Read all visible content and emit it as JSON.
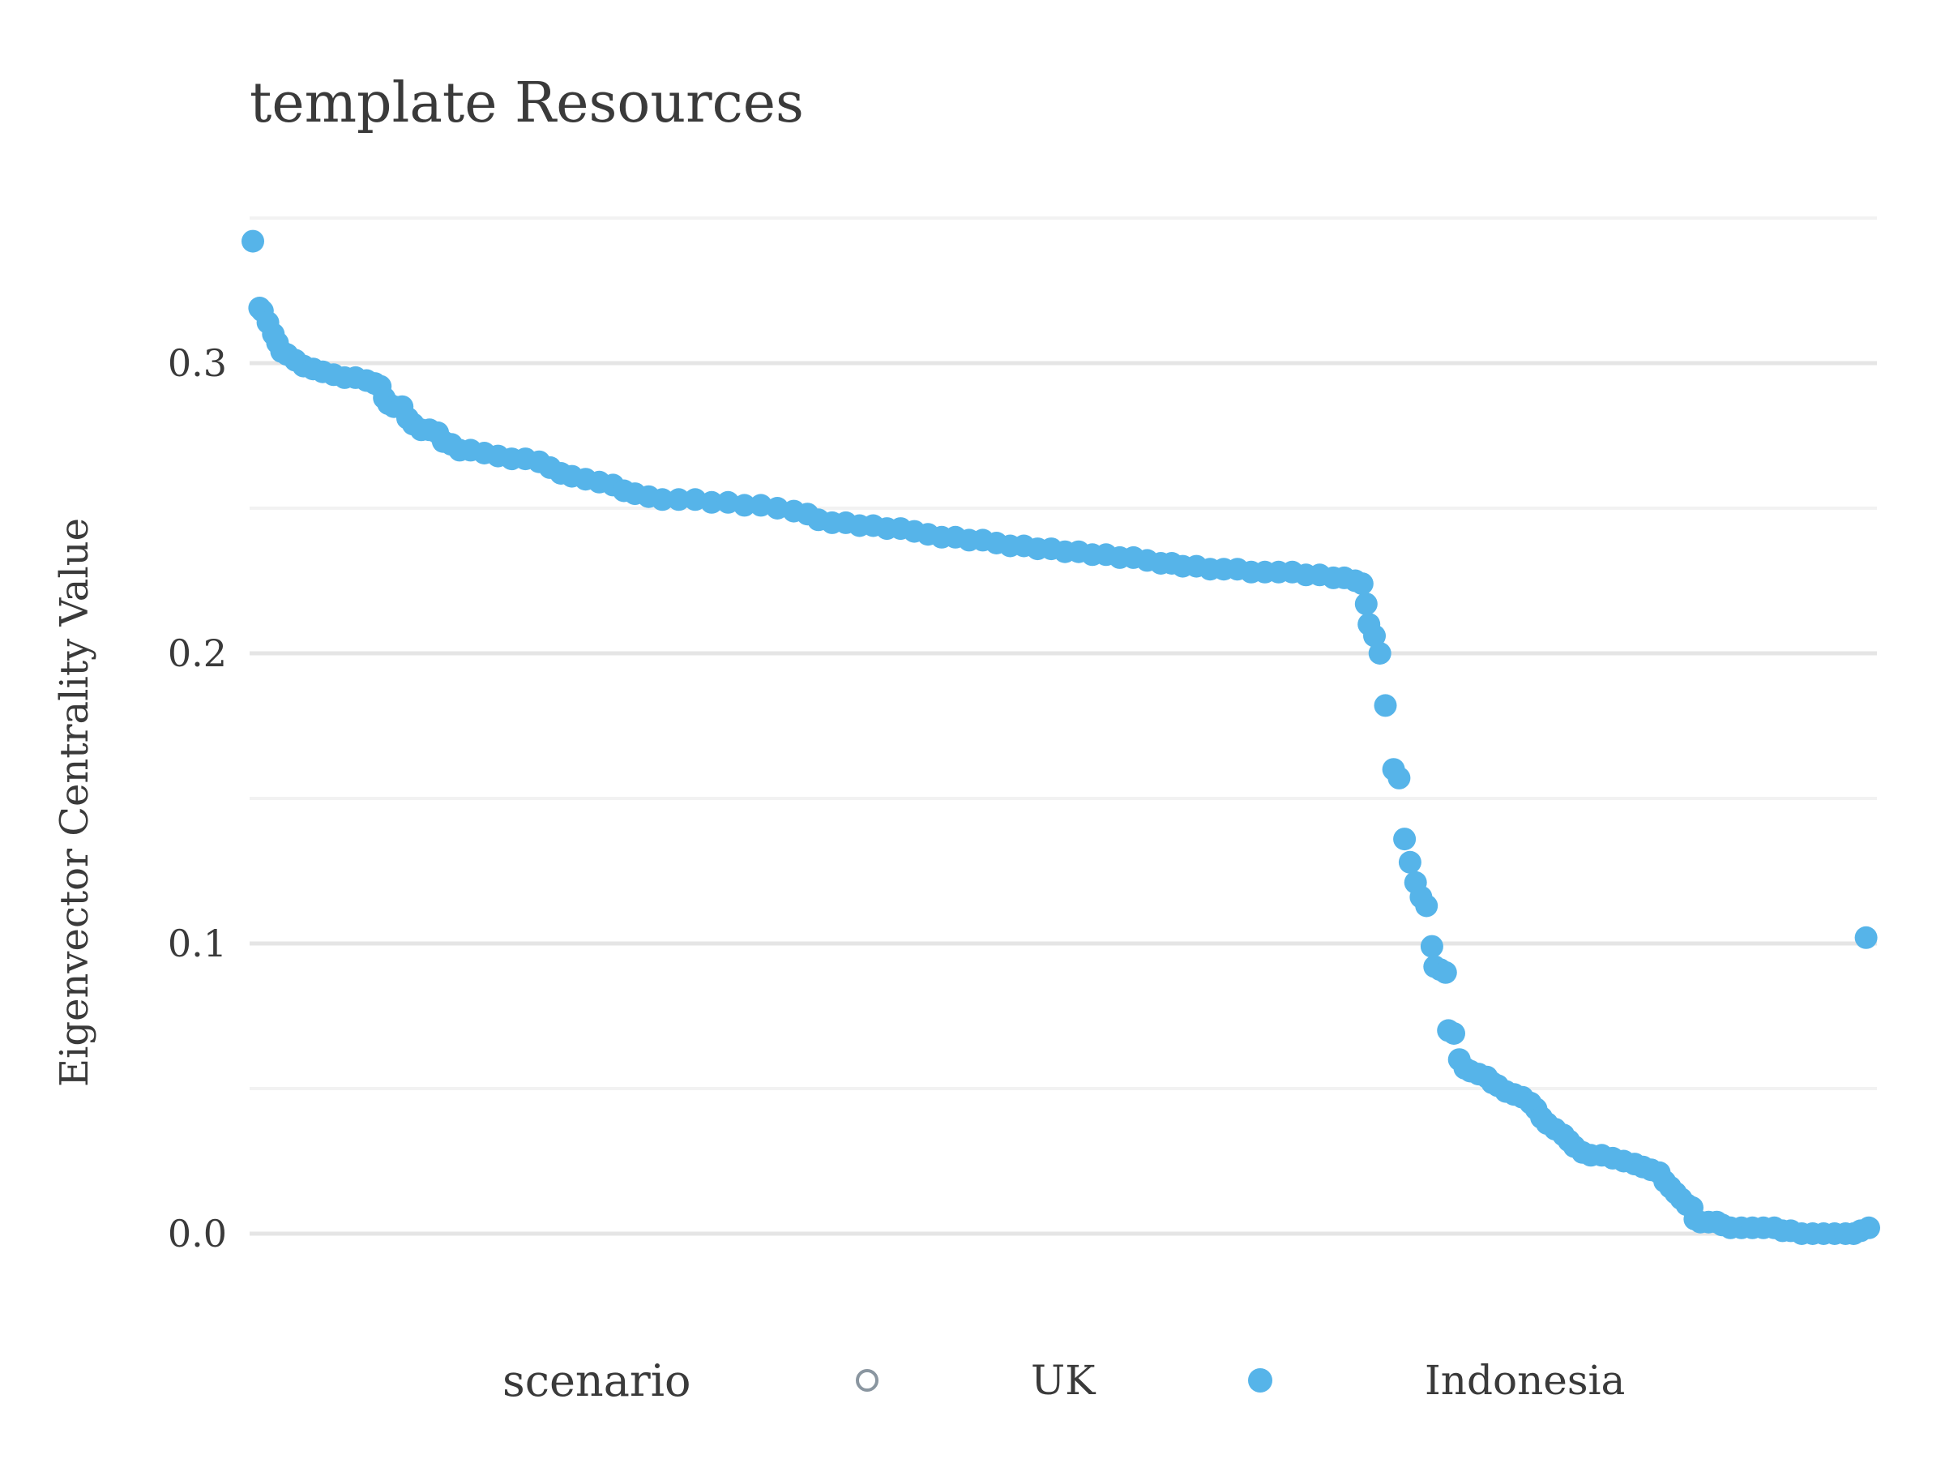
{
  "chart_data": {
    "type": "scatter",
    "title": "template Resources",
    "xlabel": "",
    "ylabel": "Eigenvector Centrality Value",
    "ylim": [
      -0.02,
      0.35
    ],
    "y_ticks": [
      {
        "value": 0.0,
        "label": "0.0"
      },
      {
        "value": 0.1,
        "label": "0.1"
      },
      {
        "value": 0.2,
        "label": "0.2"
      },
      {
        "value": 0.3,
        "label": "0.3"
      }
    ],
    "y_minor_ticks": [
      0.05,
      0.15,
      0.25,
      0.35
    ],
    "grid": true,
    "legend": {
      "title": "scenario",
      "position": "bottom",
      "entries": [
        {
          "name": "UK",
          "marker": "open-circle",
          "color": "#8a96a0"
        },
        {
          "name": "Indonesia",
          "marker": "filled-circle",
          "color": "#56b4e9"
        }
      ]
    },
    "series": [
      {
        "name": "Indonesia",
        "color": "#56b4e9",
        "points": [
          [
            1,
            0.342
          ],
          [
            6,
            0.319
          ],
          [
            8,
            0.318
          ],
          [
            12,
            0.314
          ],
          [
            16,
            0.31
          ],
          [
            19,
            0.307
          ],
          [
            22,
            0.304
          ],
          [
            26,
            0.303
          ],
          [
            32,
            0.301
          ],
          [
            38,
            0.299
          ],
          [
            45,
            0.298
          ],
          [
            52,
            0.297
          ],
          [
            60,
            0.296
          ],
          [
            68,
            0.295
          ],
          [
            76,
            0.295
          ],
          [
            84,
            0.294
          ],
          [
            90,
            0.293
          ],
          [
            94,
            0.292
          ],
          [
            97,
            0.288
          ],
          [
            100,
            0.286
          ],
          [
            104,
            0.285
          ],
          [
            110,
            0.285
          ],
          [
            114,
            0.281
          ],
          [
            118,
            0.279
          ],
          [
            124,
            0.277
          ],
          [
            130,
            0.277
          ],
          [
            136,
            0.276
          ],
          [
            140,
            0.273
          ],
          [
            146,
            0.272
          ],
          [
            152,
            0.27
          ],
          [
            160,
            0.27
          ],
          [
            170,
            0.269
          ],
          [
            180,
            0.268
          ],
          [
            190,
            0.267
          ],
          [
            200,
            0.267
          ],
          [
            210,
            0.266
          ],
          [
            218,
            0.264
          ],
          [
            226,
            0.262
          ],
          [
            234,
            0.261
          ],
          [
            244,
            0.26
          ],
          [
            254,
            0.259
          ],
          [
            264,
            0.258
          ],
          [
            272,
            0.256
          ],
          [
            280,
            0.255
          ],
          [
            290,
            0.254
          ],
          [
            300,
            0.253
          ],
          [
            312,
            0.253
          ],
          [
            324,
            0.253
          ],
          [
            336,
            0.252
          ],
          [
            348,
            0.252
          ],
          [
            360,
            0.251
          ],
          [
            372,
            0.251
          ],
          [
            384,
            0.25
          ],
          [
            396,
            0.249
          ],
          [
            406,
            0.248
          ],
          [
            414,
            0.246
          ],
          [
            424,
            0.245
          ],
          [
            434,
            0.245
          ],
          [
            444,
            0.244
          ],
          [
            454,
            0.244
          ],
          [
            464,
            0.243
          ],
          [
            474,
            0.243
          ],
          [
            484,
            0.242
          ],
          [
            494,
            0.241
          ],
          [
            504,
            0.24
          ],
          [
            514,
            0.24
          ],
          [
            524,
            0.239
          ],
          [
            534,
            0.239
          ],
          [
            544,
            0.238
          ],
          [
            554,
            0.237
          ],
          [
            564,
            0.237
          ],
          [
            574,
            0.236
          ],
          [
            584,
            0.236
          ],
          [
            594,
            0.235
          ],
          [
            604,
            0.235
          ],
          [
            614,
            0.234
          ],
          [
            624,
            0.234
          ],
          [
            634,
            0.233
          ],
          [
            644,
            0.233
          ],
          [
            654,
            0.232
          ],
          [
            664,
            0.231
          ],
          [
            672,
            0.231
          ],
          [
            680,
            0.23
          ],
          [
            690,
            0.23
          ],
          [
            700,
            0.229
          ],
          [
            710,
            0.229
          ],
          [
            720,
            0.229
          ],
          [
            730,
            0.228
          ],
          [
            740,
            0.228
          ],
          [
            750,
            0.228
          ],
          [
            760,
            0.228
          ],
          [
            770,
            0.227
          ],
          [
            780,
            0.227
          ],
          [
            790,
            0.226
          ],
          [
            798,
            0.226
          ],
          [
            806,
            0.225
          ],
          [
            811,
            0.224
          ],
          [
            814,
            0.217
          ],
          [
            816,
            0.21
          ],
          [
            820,
            0.206
          ],
          [
            824,
            0.2
          ],
          [
            828,
            0.182
          ],
          [
            834,
            0.16
          ],
          [
            838,
            0.157
          ],
          [
            842,
            0.136
          ],
          [
            846,
            0.128
          ],
          [
            850,
            0.121
          ],
          [
            854,
            0.116
          ],
          [
            858,
            0.113
          ],
          [
            862,
            0.099
          ],
          [
            864,
            0.092
          ],
          [
            868,
            0.091
          ],
          [
            872,
            0.09
          ],
          [
            874,
            0.07
          ],
          [
            878,
            0.069
          ],
          [
            882,
            0.06
          ],
          [
            886,
            0.057
          ],
          [
            890,
            0.056
          ],
          [
            896,
            0.055
          ],
          [
            902,
            0.054
          ],
          [
            906,
            0.052
          ],
          [
            910,
            0.051
          ],
          [
            916,
            0.049
          ],
          [
            922,
            0.048
          ],
          [
            928,
            0.047
          ],
          [
            934,
            0.045
          ],
          [
            938,
            0.043
          ],
          [
            942,
            0.04
          ],
          [
            946,
            0.038
          ],
          [
            952,
            0.036
          ],
          [
            958,
            0.034
          ],
          [
            962,
            0.032
          ],
          [
            966,
            0.03
          ],
          [
            972,
            0.028
          ],
          [
            978,
            0.027
          ],
          [
            986,
            0.027
          ],
          [
            994,
            0.026
          ],
          [
            1002,
            0.025
          ],
          [
            1010,
            0.024
          ],
          [
            1016,
            0.023
          ],
          [
            1022,
            0.022
          ],
          [
            1028,
            0.021
          ],
          [
            1032,
            0.018
          ],
          [
            1036,
            0.016
          ],
          [
            1040,
            0.014
          ],
          [
            1044,
            0.012
          ],
          [
            1048,
            0.01
          ],
          [
            1052,
            0.009
          ],
          [
            1054,
            0.005
          ],
          [
            1058,
            0.004
          ],
          [
            1064,
            0.004
          ],
          [
            1070,
            0.004
          ],
          [
            1074,
            0.003
          ],
          [
            1080,
            0.002
          ],
          [
            1088,
            0.002
          ],
          [
            1096,
            0.002
          ],
          [
            1104,
            0.002
          ],
          [
            1112,
            0.002
          ],
          [
            1118,
            0.001
          ],
          [
            1124,
            0.001
          ],
          [
            1132,
            0.0
          ],
          [
            1140,
            0.0
          ],
          [
            1148,
            0.0
          ],
          [
            1156,
            0.0
          ],
          [
            1164,
            0.0
          ],
          [
            1170,
            0.0
          ],
          [
            1175,
            0.001
          ],
          [
            1179,
            0.102
          ],
          [
            1181,
            0.002
          ]
        ]
      }
    ]
  }
}
